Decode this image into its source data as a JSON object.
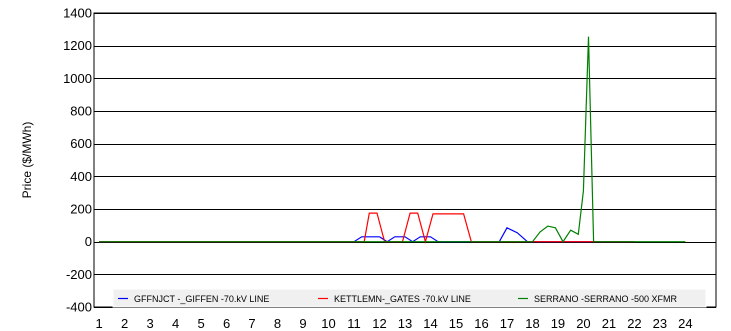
{
  "chart_data": {
    "type": "line",
    "ylabel": "Price ($/MWh)",
    "ylim": [
      -400,
      1400
    ],
    "yticks": [
      -400,
      -200,
      0,
      200,
      400,
      600,
      800,
      1000,
      1200,
      1400
    ],
    "xlim": [
      0.8,
      25.2
    ],
    "xticks": [
      "1",
      "2",
      "3",
      "4",
      "5",
      "6",
      "7",
      "8",
      "9",
      "10",
      "11",
      "12",
      "13",
      "14",
      "15",
      "16",
      "17",
      "18",
      "19",
      "20",
      "21",
      "22",
      "23",
      "24"
    ],
    "grid": "horizontal",
    "legend_position": "bottom",
    "series": [
      {
        "name": "GFFNJCT -_GIFFEN -70.kV LINE",
        "color": "#0000ff",
        "x": [
          1,
          11,
          11.3,
          12,
          12.3,
          12.6,
          13,
          13.3,
          13.6,
          14,
          14.3,
          14.6,
          15,
          16,
          16.7,
          17,
          17.4,
          17.8,
          22
        ],
        "y": [
          0,
          0,
          30,
          30,
          0,
          30,
          30,
          0,
          30,
          30,
          0,
          0,
          0,
          0,
          0,
          85,
          55,
          0,
          0
        ]
      },
      {
        "name": "KETTLEMN-_GATES -70.kV LINE",
        "color": "#ff0000",
        "x": [
          1,
          11,
          11.4,
          11.6,
          11.9,
          12.2,
          12.5,
          12.9,
          13.2,
          13.5,
          13.8,
          14.1,
          15.3,
          15.6,
          16,
          22
        ],
        "y": [
          0,
          0,
          0,
          175,
          175,
          0,
          0,
          0,
          175,
          175,
          0,
          170,
          170,
          0,
          0,
          0
        ]
      },
      {
        "name": "SERRANO -SERRANO -500 XFMR",
        "color": "#008000",
        "x": [
          1,
          17.5,
          18,
          18.3,
          18.6,
          18.9,
          19.2,
          19.5,
          19.8,
          20,
          20.2,
          20.4,
          20.6,
          20.8,
          21,
          21.3,
          21.6,
          21.8,
          22,
          24
        ],
        "y": [
          0,
          0,
          0,
          60,
          95,
          85,
          0,
          70,
          45,
          310,
          1255,
          0,
          0,
          0,
          0,
          0,
          0,
          0,
          0,
          0
        ]
      }
    ]
  }
}
